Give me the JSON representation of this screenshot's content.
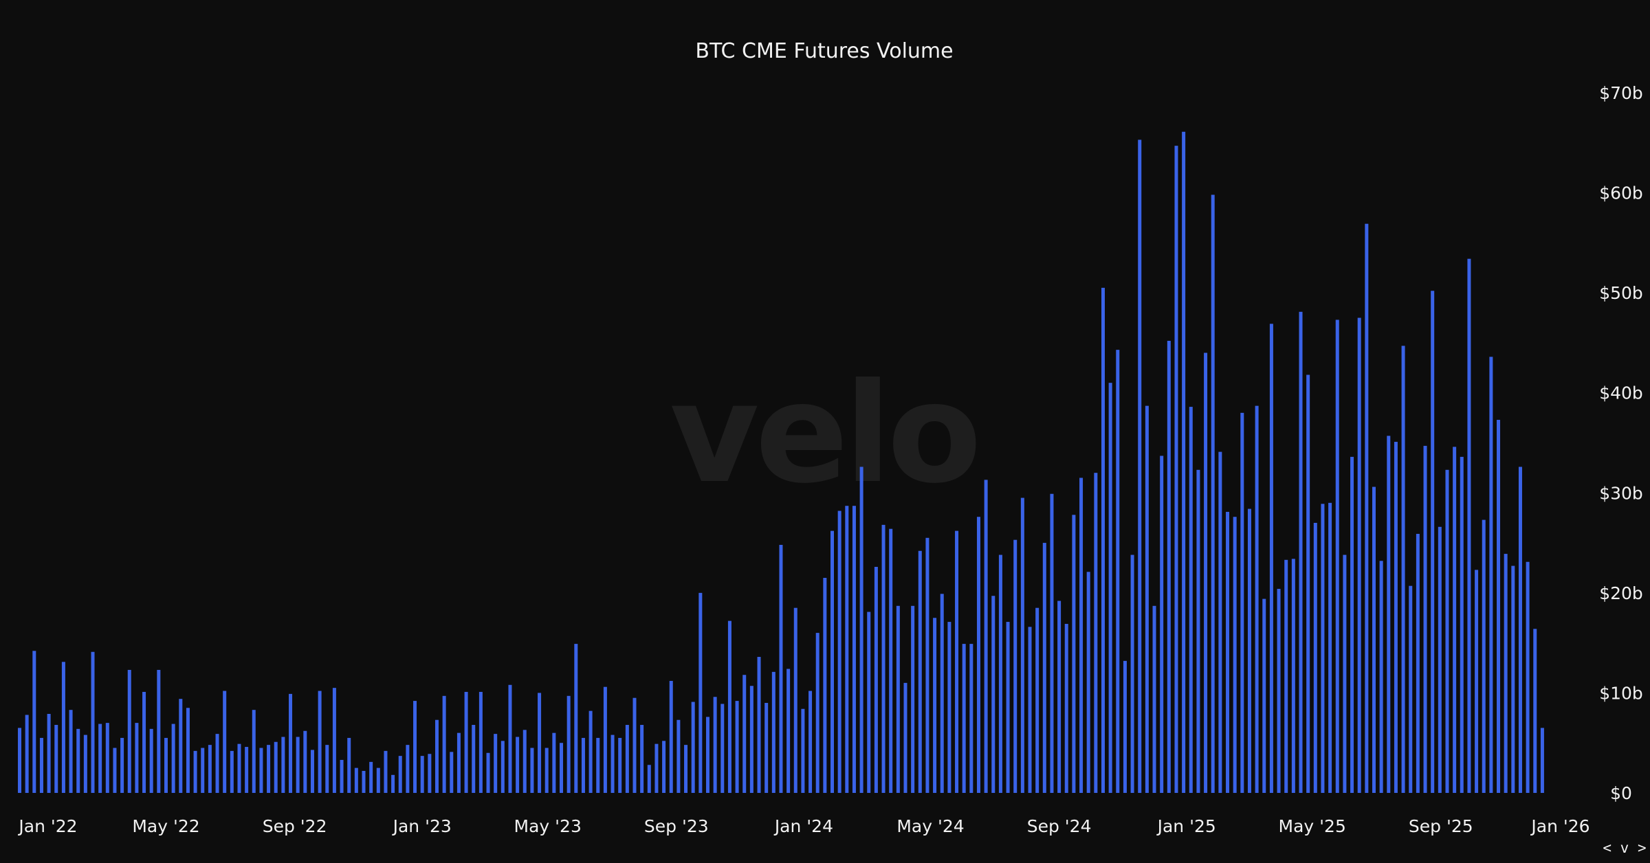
{
  "watermark": "velo",
  "nav_arrows": "< v >",
  "chart_data": {
    "type": "bar",
    "title": "BTC CME Futures Volume",
    "xlabel": "",
    "ylabel": "",
    "bar_color": "#3a63e8",
    "background": "#0d0d0d",
    "ylim": [
      0,
      70
    ],
    "y_axis_position": "right",
    "y_ticks": [
      {
        "value": 0,
        "label": "$0"
      },
      {
        "value": 10,
        "label": "$10b"
      },
      {
        "value": 20,
        "label": "$20b"
      },
      {
        "value": 30,
        "label": "$30b"
      },
      {
        "value": 40,
        "label": "$40b"
      },
      {
        "value": 50,
        "label": "$50b"
      },
      {
        "value": 60,
        "label": "$60b"
      },
      {
        "value": 70,
        "label": "$70b"
      }
    ],
    "x_ticks": [
      {
        "date": "2022-01-01",
        "label": "Jan '22"
      },
      {
        "date": "2022-05-01",
        "label": "May '22"
      },
      {
        "date": "2022-09-01",
        "label": "Sep '22"
      },
      {
        "date": "2023-01-01",
        "label": "Jan '23"
      },
      {
        "date": "2023-05-01",
        "label": "May '23"
      },
      {
        "date": "2023-09-01",
        "label": "Sep '23"
      },
      {
        "date": "2024-01-01",
        "label": "Jan '24"
      },
      {
        "date": "2024-05-01",
        "label": "May '24"
      },
      {
        "date": "2024-09-01",
        "label": "Sep '24"
      },
      {
        "date": "2025-01-01",
        "label": "Jan '25"
      },
      {
        "date": "2025-05-01",
        "label": "May '25"
      },
      {
        "date": "2025-09-01",
        "label": "Sep '25"
      },
      {
        "date": "2026-01-01",
        "label": "Jan '26"
      }
    ],
    "x_range": [
      "2021-12-11",
      "2026-01-04"
    ],
    "bar_interval": "weekly",
    "first_bar_date": "2021-12-12",
    "values": [
      6.5,
      7.8,
      14.2,
      5.5,
      7.9,
      6.8,
      13.1,
      8.3,
      6.4,
      5.8,
      14.1,
      6.9,
      7.0,
      4.5,
      5.5,
      12.3,
      7.0,
      10.1,
      6.4,
      12.3,
      5.5,
      6.9,
      9.4,
      8.5,
      4.2,
      4.5,
      4.8,
      5.9,
      10.2,
      4.2,
      4.9,
      4.6,
      8.3,
      4.5,
      4.8,
      5.1,
      5.6,
      9.9,
      5.6,
      6.2,
      4.3,
      10.2,
      4.8,
      10.5,
      3.3,
      5.5,
      2.5,
      2.2,
      3.1,
      2.5,
      4.2,
      1.8,
      3.7,
      4.8,
      9.2,
      3.7,
      3.9,
      7.3,
      9.7,
      4.1,
      6.0,
      10.1,
      6.8,
      10.1,
      4.0,
      5.9,
      5.2,
      10.8,
      5.6,
      6.3,
      4.5,
      10.0,
      4.5,
      6.0,
      5.0,
      9.7,
      14.9,
      5.5,
      8.2,
      5.5,
      10.6,
      5.8,
      5.5,
      6.8,
      9.5,
      6.8,
      2.8,
      4.9,
      5.2,
      11.2,
      7.3,
      4.8,
      9.1,
      20.0,
      7.6,
      9.6,
      8.9,
      17.2,
      9.2,
      11.8,
      10.7,
      13.6,
      9.0,
      12.1,
      24.8,
      12.4,
      18.5,
      8.4,
      10.2,
      16.0,
      21.5,
      26.2,
      28.2,
      28.7,
      28.7,
      32.6,
      18.1,
      22.6,
      26.8,
      26.4,
      18.7,
      11.0,
      18.7,
      24.2,
      25.5,
      17.5,
      19.9,
      17.1,
      26.2,
      14.9,
      14.9,
      27.6,
      31.3,
      19.7,
      23.8,
      17.1,
      25.3,
      29.5,
      16.6,
      18.5,
      25.0,
      29.9,
      19.2,
      16.9,
      27.8,
      31.5,
      22.1,
      32.0,
      50.5,
      41.0,
      44.3,
      13.2,
      23.8,
      65.3,
      38.7,
      18.7,
      33.7,
      45.2,
      64.7,
      66.1,
      38.6,
      32.3,
      44.0,
      59.8,
      34.1,
      28.1,
      27.6,
      38.0,
      28.4,
      38.7,
      19.4,
      46.9,
      20.4,
      23.3,
      23.4,
      48.1,
      41.8,
      27.0,
      28.9,
      29.0,
      47.3,
      23.8,
      33.6,
      47.5,
      56.9,
      30.6,
      23.2,
      35.7,
      35.1,
      44.7,
      20.7,
      25.9,
      34.7,
      50.2,
      26.6,
      32.3,
      34.6,
      33.6,
      53.4,
      22.3,
      27.3,
      43.6,
      37.3,
      23.9,
      22.7,
      32.6,
      23.1,
      16.4,
      6.5
    ]
  }
}
